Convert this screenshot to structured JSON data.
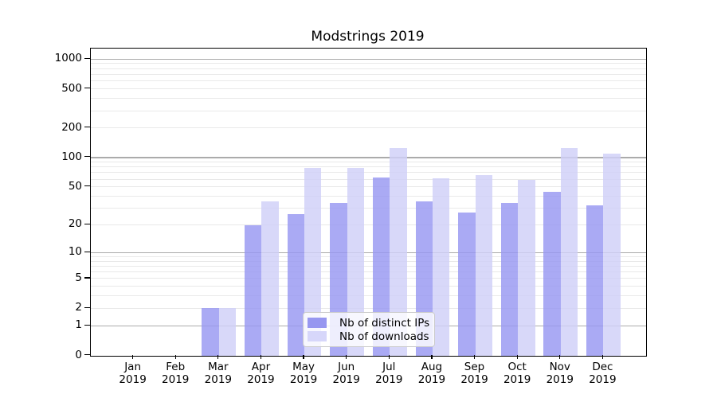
{
  "title": "Modstrings 2019",
  "chart_data": {
    "type": "bar",
    "title": "Modstrings 2019",
    "categories": [
      "Jan\n2019",
      "Feb\n2019",
      "Mar\n2019",
      "Apr\n2019",
      "May\n2019",
      "Jun\n2019",
      "Jul\n2019",
      "Aug\n2019",
      "Sep\n2019",
      "Oct\n2019",
      "Nov\n2019",
      "Dec\n2019"
    ],
    "series": [
      {
        "name": "Nb of distinct IPs",
        "bar_color": "rgba(151,151,242,0.82)",
        "legend_color": "#9797f0",
        "values": [
          0,
          0,
          2,
          20,
          26,
          34,
          62,
          35,
          27,
          34,
          44,
          32
        ]
      },
      {
        "name": "Nb of downloads",
        "bar_color": "rgba(208,208,248,0.82)",
        "legend_color": "#d7d7fa",
        "values": [
          0,
          0,
          2,
          35,
          78,
          78,
          125,
          61,
          66,
          59,
          125,
          110
        ]
      }
    ],
    "xlabel": "",
    "ylabel": "",
    "yscale": "log1p",
    "ylim": [
      0,
      1281
    ],
    "y_ticks": [
      0,
      1,
      2,
      5,
      10,
      20,
      50,
      100,
      200,
      500,
      1000
    ],
    "y_major_gridlines": [
      1,
      10,
      100,
      1000
    ],
    "y_minor_gridlines": [
      3,
      4,
      6,
      7,
      8,
      9,
      30,
      40,
      60,
      70,
      80,
      90,
      300,
      400,
      600,
      700,
      800,
      900
    ],
    "grid": true,
    "legend_position": "lower center",
    "colors": {
      "axis": "#000000",
      "major_grid": "#ababab",
      "minor_grid": "#e9e9e9",
      "tick_text": "#000000",
      "background": "#ffffff"
    }
  }
}
